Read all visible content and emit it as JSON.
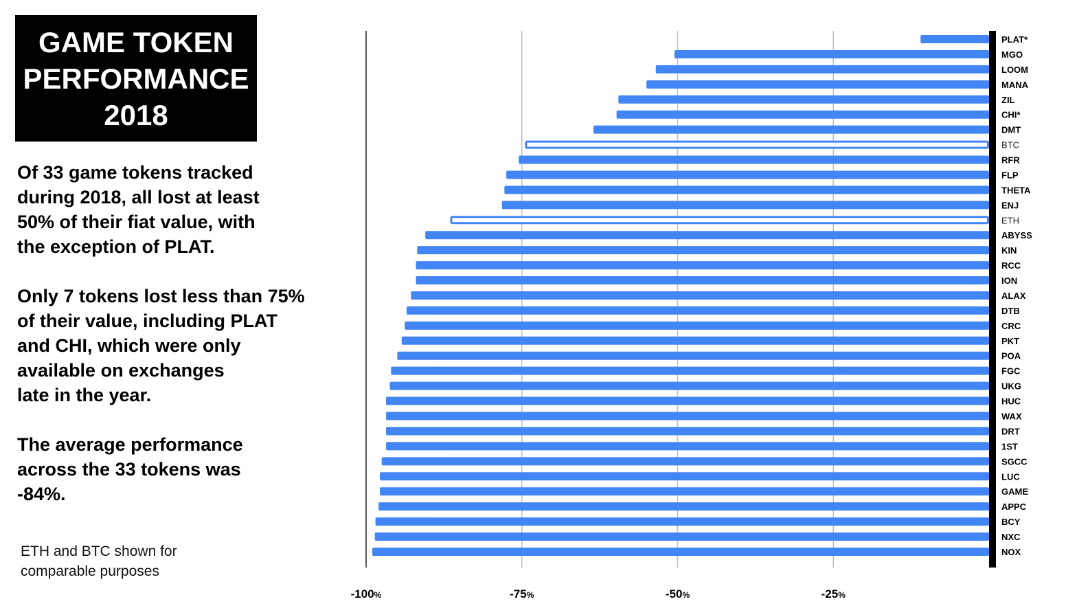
{
  "title": {
    "lines": [
      "GAME TOKEN",
      "PERFORMANCE",
      "2018"
    ]
  },
  "text": {
    "para1": [
      "Of 33 game tokens tracked",
      "during 2018, all lost at least",
      "50% of their fiat value, with",
      "the exception of PLAT."
    ],
    "para2": [
      "Only 7 tokens lost less than 75%",
      "of their value, including PLAT",
      "and CHI, which were only",
      "available on exchanges",
      "late in the year."
    ],
    "para3": [
      "The average performance",
      "across the 33 tokens was",
      "-84%."
    ],
    "note": [
      "ETH and BTC shown for",
      "comparable purposes"
    ]
  },
  "colors": {
    "bar": "#4285f4",
    "reference_bar_fill": "#ffffff",
    "reference_bar_stroke": "#4285f4",
    "baseline": "#000000",
    "grid": "#bdbdbd"
  },
  "chart_data": {
    "type": "bar",
    "orientation": "horizontal",
    "xlim": [
      -100,
      0
    ],
    "xticks": [
      {
        "value": -100,
        "num": "-100",
        "unit": "%"
      },
      {
        "value": -75,
        "num": "-75",
        "unit": "%"
      },
      {
        "value": -50,
        "num": "-50",
        "unit": "%"
      },
      {
        "value": -25,
        "num": "-25",
        "unit": "%"
      }
    ],
    "grid": true,
    "bars": [
      {
        "label": "PLAT*",
        "value": -11
      },
      {
        "label": "MGO",
        "value": -50.5
      },
      {
        "label": "LOOM",
        "value": -53.5
      },
      {
        "label": "MANA",
        "value": -55
      },
      {
        "label": "ZIL",
        "value": -59.5
      },
      {
        "label": "CHI*",
        "value": -59.8
      },
      {
        "label": "DMT",
        "value": -63.5
      },
      {
        "label": "BTC",
        "value": -74.5,
        "reference": true
      },
      {
        "label": "RFR",
        "value": -75.5
      },
      {
        "label": "FLP",
        "value": -77.5
      },
      {
        "label": "THETA",
        "value": -77.8
      },
      {
        "label": "ENJ",
        "value": -78.2
      },
      {
        "label": "ETH",
        "value": -86.5,
        "reference": true
      },
      {
        "label": "ABYSS",
        "value": -90.5
      },
      {
        "label": "KIN",
        "value": -91.8
      },
      {
        "label": "RCC",
        "value": -92
      },
      {
        "label": "ION",
        "value": -92
      },
      {
        "label": "ALAX",
        "value": -92.8
      },
      {
        "label": "DTB",
        "value": -93.5
      },
      {
        "label": "CRC",
        "value": -93.8
      },
      {
        "label": "PKT",
        "value": -94.3
      },
      {
        "label": "POA",
        "value": -95
      },
      {
        "label": "FGC",
        "value": -96
      },
      {
        "label": "UKG",
        "value": -96.2
      },
      {
        "label": "HUC",
        "value": -96.8
      },
      {
        "label": "WAX",
        "value": -96.8
      },
      {
        "label": "DRT",
        "value": -96.8
      },
      {
        "label": "1ST",
        "value": -96.8
      },
      {
        "label": "SGCC",
        "value": -97.5
      },
      {
        "label": "LUC",
        "value": -97.8
      },
      {
        "label": "GAME",
        "value": -97.8
      },
      {
        "label": "APPC",
        "value": -98
      },
      {
        "label": "BCY",
        "value": -98.5
      },
      {
        "label": "NXC",
        "value": -98.6
      },
      {
        "label": "NOX",
        "value": -99
      }
    ]
  }
}
